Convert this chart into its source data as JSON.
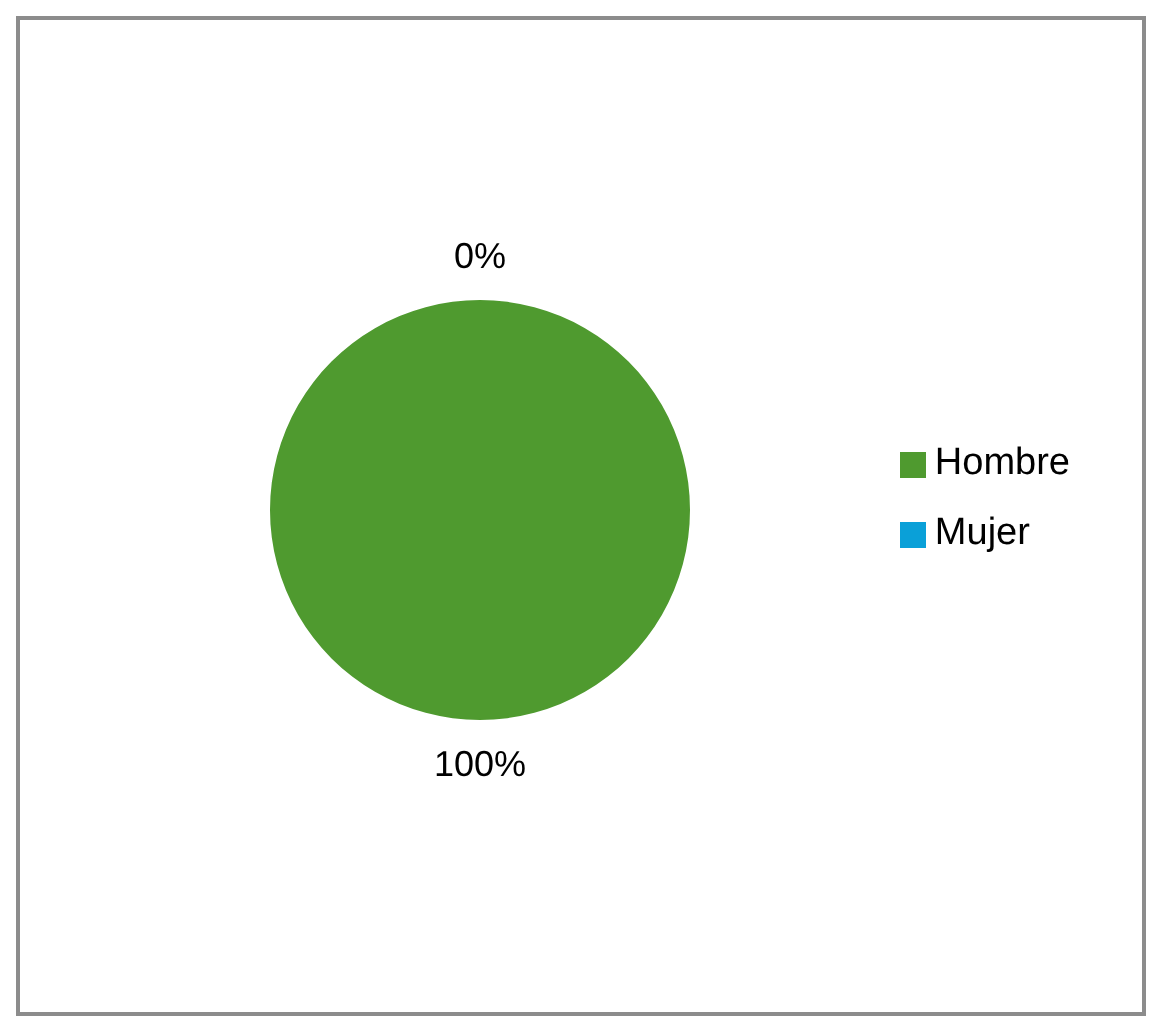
{
  "chart_data": {
    "type": "pie",
    "categories": [
      "Hombre",
      "Mujer"
    ],
    "values": [
      100,
      0
    ],
    "colors": [
      "#4f9a2f",
      "#0aa0d8"
    ],
    "value_labels": [
      "100%",
      "0%"
    ],
    "legend": "right"
  }
}
